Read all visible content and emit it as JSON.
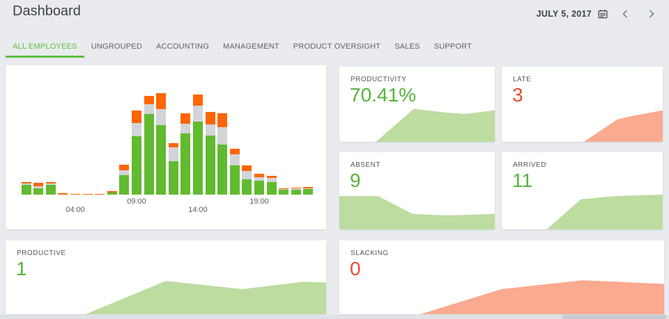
{
  "header": {
    "title": "Dashboard",
    "date": "JULY 5, 2017",
    "icons": [
      "calendar-icon",
      "chevron-left-icon",
      "chevron-right-icon"
    ]
  },
  "tabs": {
    "items": [
      {
        "label": "ALL EMPLOYEES",
        "active": true
      },
      {
        "label": "UNGROUPED",
        "active": false
      },
      {
        "label": "ACCOUNTING",
        "active": false
      },
      {
        "label": "MANAGEMENT",
        "active": false
      },
      {
        "label": "PRODUCT OVERSIGHT",
        "active": false
      },
      {
        "label": "SALES",
        "active": false
      },
      {
        "label": "SUPPORT",
        "active": false
      }
    ]
  },
  "colors": {
    "accent_green": "#5abe3c",
    "value_green": "#58b43a",
    "value_red": "#e84c31",
    "area_green": "#bcdca0",
    "area_red": "#f9aa8f",
    "bar_green": "#61ba2f",
    "bar_gray": "#d2d4d7",
    "bar_orange": "#ff6502"
  },
  "chart_data": [
    {
      "id": "hourly-activity",
      "type": "bar",
      "subtype": "stacked",
      "categories": [
        "00:00",
        "01:00",
        "02:00",
        "03:00",
        "04:00",
        "05:00",
        "06:00",
        "07:00",
        "08:00",
        "09:00",
        "10:00",
        "11:00",
        "12:00",
        "13:00",
        "14:00",
        "15:00",
        "16:00",
        "17:00",
        "18:00",
        "19:00",
        "20:00",
        "21:00",
        "22:00",
        "23:00"
      ],
      "series": [
        {
          "name": "productive-green",
          "values": [
            14,
            9,
            14.5,
            0,
            0,
            0,
            0,
            3,
            28,
            84,
            116,
            100,
            48,
            88,
            105,
            85,
            72,
            42,
            22,
            20,
            18,
            7.5,
            7.5,
            8.5
          ]
        },
        {
          "name": "idle-gray",
          "values": [
            2.5,
            3.5,
            2,
            0,
            0,
            0,
            0,
            0,
            7,
            19,
            14,
            23,
            20,
            14,
            23,
            16,
            25,
            16,
            12,
            5,
            6,
            1,
            1.5,
            0.5
          ]
        },
        {
          "name": "other-orange",
          "values": [
            1.5,
            4.5,
            1.5,
            2,
            1,
            1,
            1,
            2.5,
            8,
            18,
            12,
            23,
            6,
            15,
            16,
            18,
            20,
            8,
            8,
            5,
            3,
            0.5,
            1.5,
            2
          ]
        }
      ],
      "units": "relative-height",
      "ylim": [
        0,
        150
      ],
      "grid": false,
      "legend": "none",
      "ticks": [
        {
          "label": "04:00",
          "index": 4,
          "row": 2
        },
        {
          "label": "09:00",
          "index": 9,
          "row": 1
        },
        {
          "label": "14:00",
          "index": 14,
          "row": 2
        },
        {
          "label": "19:00",
          "index": 19,
          "row": 1
        }
      ]
    },
    {
      "id": "productivity",
      "type": "area",
      "title": "PRODUCTIVITY",
      "value": "70.41%",
      "color": "green",
      "points": [
        [
          23.6,
          100
        ],
        [
          48,
          56
        ],
        [
          68,
          61
        ],
        [
          81,
          63
        ],
        [
          100,
          58
        ]
      ]
    },
    {
      "id": "late",
      "type": "area",
      "title": "LATE",
      "value": "3",
      "color": "red",
      "points": [
        [
          51,
          100
        ],
        [
          72,
          70
        ],
        [
          78,
          67
        ],
        [
          100,
          58
        ]
      ]
    },
    {
      "id": "absent",
      "type": "area",
      "title": "ABSENT",
      "value": "9",
      "color": "green",
      "points": [
        [
          0,
          57
        ],
        [
          25,
          57
        ],
        [
          47,
          80
        ],
        [
          70,
          82
        ],
        [
          100,
          80
        ]
      ]
    },
    {
      "id": "arrived",
      "type": "area",
      "title": "ARRIVED",
      "value": "11",
      "color": "green",
      "points": [
        [
          28,
          100
        ],
        [
          49,
          61
        ],
        [
          70,
          57
        ],
        [
          100,
          55
        ]
      ]
    },
    {
      "id": "productive",
      "type": "area",
      "title": "PRODUCTIVE",
      "value": "1",
      "color": "green",
      "points": [
        [
          25,
          100
        ],
        [
          50,
          55
        ],
        [
          74,
          66
        ],
        [
          93,
          56
        ],
        [
          100,
          57
        ]
      ]
    },
    {
      "id": "slacking",
      "type": "area",
      "title": "SLACKING",
      "value": "0",
      "color": "red",
      "points": [
        [
          25,
          100
        ],
        [
          50,
          66
        ],
        [
          75,
          54
        ],
        [
          100,
          59
        ]
      ]
    }
  ]
}
